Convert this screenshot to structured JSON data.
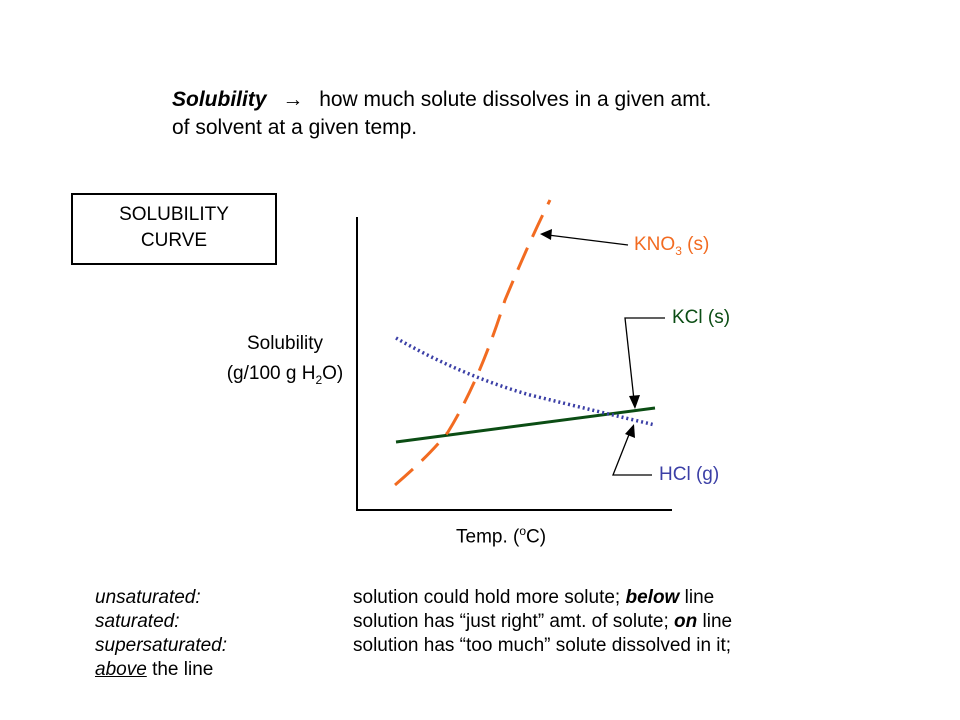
{
  "definition": {
    "term": "Solubility",
    "arrow": "→",
    "text_line1": "how much solute dissolves in a given amt.",
    "text_line2": "of solvent at a given temp."
  },
  "title_box": {
    "line1": "SOLUBILITY",
    "line2": "CURVE"
  },
  "axes": {
    "ylabel_line1": "Solubility",
    "ylabel_pre": "(g/100 g H",
    "ylabel_sub": "2",
    "ylabel_post": "O)",
    "xlabel_pre": "Temp. (",
    "xlabel_sup": "o",
    "xlabel_post": "C)"
  },
  "curves": [
    {
      "name_pre": "KNO",
      "name_sub": "3",
      "name_post": " (s)",
      "color": "#f26b21",
      "style": "dashed"
    },
    {
      "name": "KCl (s)",
      "color": "#0b4d14",
      "style": "solid"
    },
    {
      "name": "HCl (g)",
      "color": "#3b3fa6",
      "style": "dotted"
    }
  ],
  "label_colors": {
    "kno3": "#f26b21",
    "kcl": "#0b4d14",
    "hcl": "#3b3fa6"
  },
  "rows": {
    "unsat_term": "unsaturated:",
    "unsat_desc_pre": "solution could hold more solute;",
    "unsat_emph": "below",
    "unsat_post": "line",
    "sat_term": "saturated:",
    "sat_desc_pre": "solution has “just right” amt. of solute;",
    "sat_emph": "on",
    "sat_post": "line",
    "super_term": "supersaturated:",
    "super_desc": "solution has “too much” solute dissolved in it;",
    "above": "above",
    "above_post": "the line"
  }
}
